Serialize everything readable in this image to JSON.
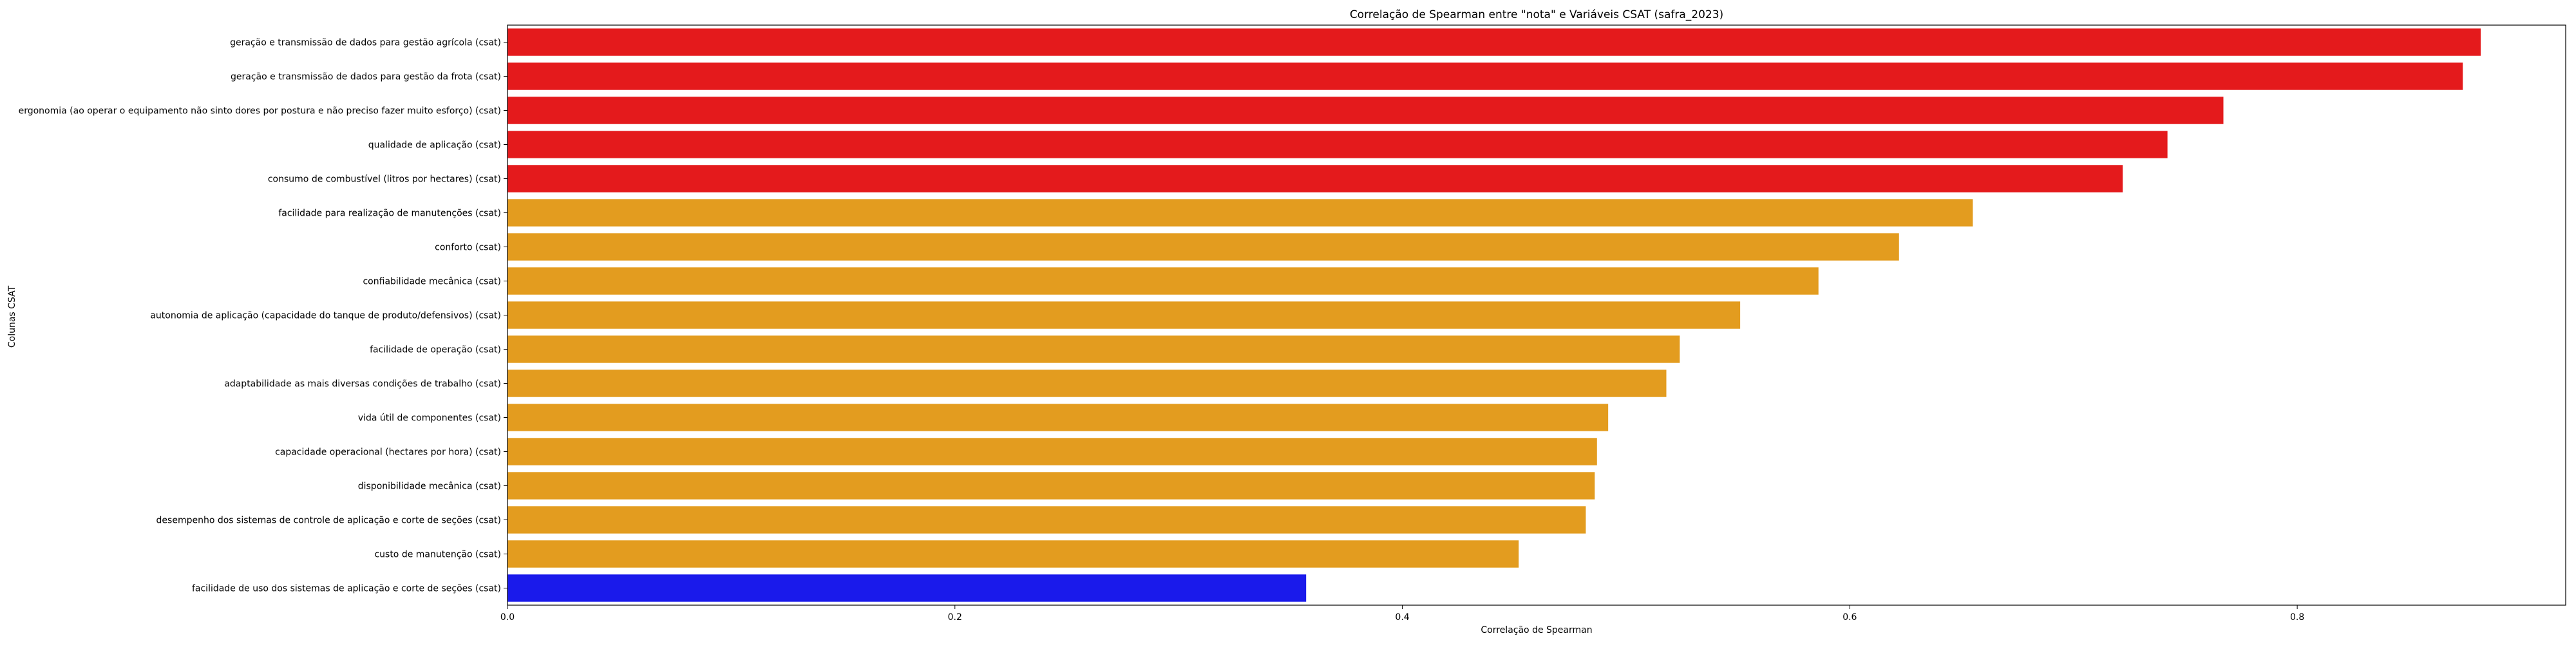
{
  "chart_data": {
    "type": "bar",
    "orientation": "horizontal",
    "title": "Correlação de Spearman entre \"nota\" e Variáveis CSAT (safra_2023)",
    "xlabel": "Correlação de Spearman",
    "ylabel": "Colunas CSAT",
    "xlim": [
      0,
      0.92
    ],
    "xticks": [
      0.0,
      0.2,
      0.4,
      0.6,
      0.8
    ],
    "xtick_labels": [
      "0.0",
      "0.2",
      "0.4",
      "0.6",
      "0.8"
    ],
    "grid": false,
    "categories": [
      "geração e transmissão de dados para gestão agrícola (csat)",
      "geração e transmissão de dados para gestão da frota (csat)",
      "ergonomia (ao operar o equipamento não sinto dores por postura e não preciso fazer muito esforço) (csat)",
      "qualidade de aplicação (csat)",
      "consumo de combustível (litros por hectares) (csat)",
      "facilidade para realização de manutenções (csat)",
      "conforto (csat)",
      "confiabilidade mecânica (csat)",
      "autonomia de aplicação (capacidade do tanque de produto/defensivos) (csat)",
      "facilidade de operação (csat)",
      "adaptabilidade as mais diversas condições de trabalho (csat)",
      "vida útil de componentes (csat)",
      "capacidade operacional (hectares por hora) (csat)",
      "disponibilidade mecânica (csat)",
      "desempenho dos sistemas de controle de aplicação e corte de seções (csat)",
      "custo de manutenção (csat)",
      "facilidade de uso dos sistemas de aplicação e corte de seções (csat)"
    ],
    "values": [
      0.882,
      0.874,
      0.767,
      0.742,
      0.722,
      0.655,
      0.622,
      0.586,
      0.551,
      0.524,
      0.518,
      0.492,
      0.487,
      0.486,
      0.482,
      0.452,
      0.357
    ],
    "bar_colors": [
      "#e41a1c",
      "#e41a1c",
      "#e41a1c",
      "#e41a1c",
      "#e41a1c",
      "#e39c1f",
      "#e39c1f",
      "#e39c1f",
      "#e39c1f",
      "#e39c1f",
      "#e39c1f",
      "#e39c1f",
      "#e39c1f",
      "#e39c1f",
      "#e39c1f",
      "#e39c1f",
      "#1a1aeb"
    ]
  }
}
